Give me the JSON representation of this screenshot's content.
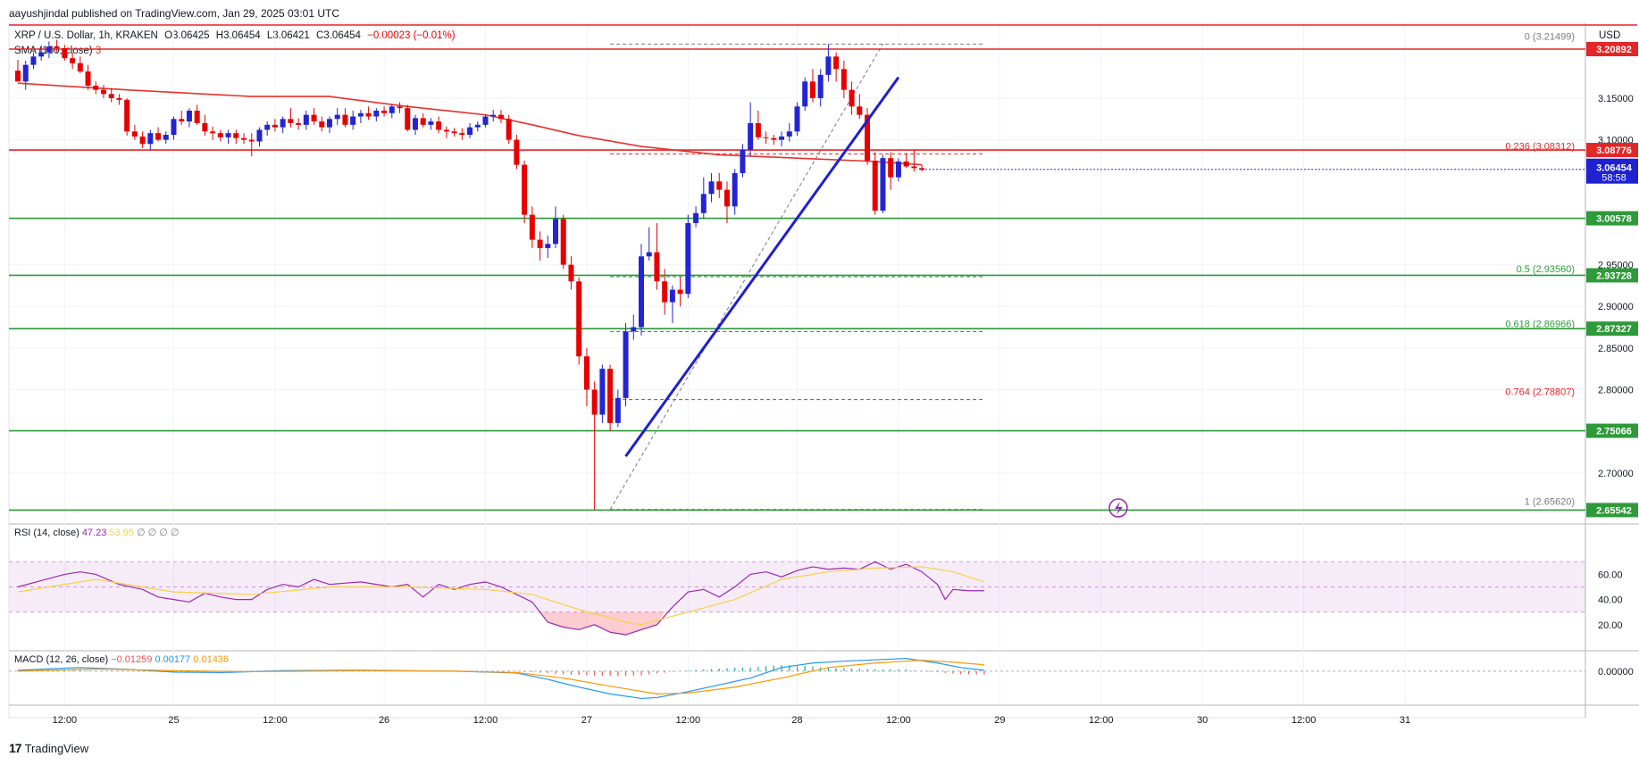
{
  "header": {
    "publisher": "aayushjindal published on TradingView.com, Jan 29, 2025 03:01 UTC",
    "symbol": "XRP / U.S. Dollar, 1h, KRAKEN",
    "ohlc": {
      "o": "O3.06425",
      "h": "H3.06454",
      "l": "L3.06421",
      "c": "C3.06454",
      "chg": "−0.00023 (−0.01%)"
    },
    "sma_label": "SMA (100, close)",
    "sma_value": "3",
    "currency": "USD"
  },
  "footer": {
    "brand": "TradingView",
    "logo": "17"
  },
  "colors": {
    "up": "#2424d4",
    "down": "#e60000",
    "sma": "#e5322d",
    "support": "#2e9a3a",
    "resistance": "#e32626",
    "trend": "#1f1fd1",
    "rsi": "#9c27b0",
    "rsi_ma": "#f7d04a",
    "macd": "#2196f3",
    "signal": "#ff9800"
  },
  "chart_data": {
    "type": "candlestick",
    "interval": "1h",
    "x_ticks": [
      "12:00",
      "25",
      "12:00",
      "26",
      "12:00",
      "27",
      "12:00",
      "28",
      "12:00",
      "29",
      "12:00",
      "30",
      "12:00",
      "31"
    ],
    "price_axis": {
      "ylim": [
        2.643,
        3.24
      ],
      "ticks": [
        "3.15000",
        "3.10000",
        "2.95000",
        "2.90000",
        "2.85000",
        "2.80000",
        "2.70000"
      ]
    },
    "levels": [
      {
        "price": 3.20892,
        "label": "3.20892",
        "kind": "resistance"
      },
      {
        "price": 3.08776,
        "label": "3.08776",
        "kind": "resistance"
      },
      {
        "price": 3.00578,
        "label": "3.00578",
        "kind": "support"
      },
      {
        "price": 2.93728,
        "label": "2.93728",
        "kind": "support"
      },
      {
        "price": 2.87327,
        "label": "2.87327",
        "kind": "support"
      },
      {
        "price": 2.75066,
        "label": "2.75066",
        "kind": "support"
      },
      {
        "price": 2.65542,
        "label": "2.65542",
        "kind": "support"
      }
    ],
    "current_price": {
      "price": 3.06454,
      "label": "3.06454",
      "countdown": "58:58"
    },
    "fibonacci": [
      {
        "ratio": "0",
        "price": 3.21499,
        "label": "0 (3.21499)"
      },
      {
        "ratio": "0.236",
        "price": 3.08312,
        "label": "0.236 (3.08312)"
      },
      {
        "ratio": "0.5",
        "price": 2.9356,
        "label": "0.5 (2.93560)"
      },
      {
        "ratio": "0.618",
        "price": 2.86966,
        "label": "0.618 (2.86966)"
      },
      {
        "ratio": "0.764",
        "price": 2.78807,
        "label": "0.764 (2.78807)"
      },
      {
        "ratio": "1",
        "price": 2.6562,
        "label": "1 (2.65620)"
      }
    ],
    "candles": [
      [
        3.183,
        3.196,
        3.17,
        3.17
      ],
      [
        3.17,
        3.195,
        3.16,
        3.19
      ],
      [
        3.19,
        3.205,
        3.185,
        3.2
      ],
      [
        3.2,
        3.212,
        3.195,
        3.205
      ],
      [
        3.205,
        3.218,
        3.198,
        3.212
      ],
      [
        3.212,
        3.22,
        3.205,
        3.21
      ],
      [
        3.21,
        3.214,
        3.195,
        3.198
      ],
      [
        3.198,
        3.205,
        3.185,
        3.192
      ],
      [
        3.192,
        3.2,
        3.18,
        3.182
      ],
      [
        3.182,
        3.19,
        3.16,
        3.165
      ],
      [
        3.165,
        3.17,
        3.155,
        3.16
      ],
      [
        3.16,
        3.166,
        3.15,
        3.155
      ],
      [
        3.155,
        3.162,
        3.145,
        3.15
      ],
      [
        3.15,
        3.155,
        3.142,
        3.148
      ],
      [
        3.148,
        3.15,
        3.105,
        3.11
      ],
      [
        3.11,
        3.118,
        3.1,
        3.104
      ],
      [
        3.104,
        3.11,
        3.09,
        3.095
      ],
      [
        3.095,
        3.112,
        3.088,
        3.108
      ],
      [
        3.108,
        3.115,
        3.098,
        3.1
      ],
      [
        3.1,
        3.11,
        3.095,
        3.106
      ],
      [
        3.106,
        3.128,
        3.1,
        3.125
      ],
      [
        3.125,
        3.135,
        3.118,
        3.122
      ],
      [
        3.122,
        3.138,
        3.115,
        3.135
      ],
      [
        3.135,
        3.142,
        3.118,
        3.12
      ],
      [
        3.12,
        3.13,
        3.105,
        3.11
      ],
      [
        3.11,
        3.116,
        3.1,
        3.108
      ],
      [
        3.108,
        3.112,
        3.098,
        3.103
      ],
      [
        3.103,
        3.112,
        3.095,
        3.108
      ],
      [
        3.108,
        3.112,
        3.095,
        3.102
      ],
      [
        3.102,
        3.108,
        3.095,
        3.1
      ],
      [
        3.1,
        3.108,
        3.08,
        3.098
      ],
      [
        3.098,
        3.115,
        3.092,
        3.112
      ],
      [
        3.112,
        3.122,
        3.105,
        3.118
      ],
      [
        3.118,
        3.125,
        3.11,
        3.115
      ],
      [
        3.115,
        3.128,
        3.108,
        3.125
      ],
      [
        3.125,
        3.138,
        3.115,
        3.12
      ],
      [
        3.12,
        3.126,
        3.112,
        3.118
      ],
      [
        3.118,
        3.135,
        3.112,
        3.13
      ],
      [
        3.13,
        3.138,
        3.118,
        3.122
      ],
      [
        3.122,
        3.128,
        3.11,
        3.115
      ],
      [
        3.115,
        3.128,
        3.108,
        3.125
      ],
      [
        3.125,
        3.138,
        3.118,
        3.13
      ],
      [
        3.13,
        3.138,
        3.115,
        3.118
      ],
      [
        3.118,
        3.135,
        3.112,
        3.128
      ],
      [
        3.128,
        3.136,
        3.12,
        3.132
      ],
      [
        3.132,
        3.14,
        3.124,
        3.128
      ],
      [
        3.128,
        3.138,
        3.122,
        3.135
      ],
      [
        3.135,
        3.14,
        3.128,
        3.132
      ],
      [
        3.132,
        3.142,
        3.126,
        3.14
      ],
      [
        3.14,
        3.145,
        3.132,
        3.138
      ],
      [
        3.138,
        3.142,
        3.11,
        3.112
      ],
      [
        3.112,
        3.13,
        3.106,
        3.126
      ],
      [
        3.126,
        3.132,
        3.115,
        3.118
      ],
      [
        3.118,
        3.126,
        3.112,
        3.122
      ],
      [
        3.122,
        3.128,
        3.108,
        3.112
      ],
      [
        3.112,
        3.116,
        3.102,
        3.11
      ],
      [
        3.11,
        3.114,
        3.104,
        3.108
      ],
      [
        3.108,
        3.114,
        3.1,
        3.106
      ],
      [
        3.106,
        3.12,
        3.102,
        3.115
      ],
      [
        3.115,
        3.122,
        3.11,
        3.118
      ],
      [
        3.118,
        3.13,
        3.115,
        3.128
      ],
      [
        3.128,
        3.136,
        3.122,
        3.13
      ],
      [
        3.13,
        3.136,
        3.12,
        3.125
      ],
      [
        3.125,
        3.13,
        3.095,
        3.1
      ],
      [
        3.1,
        3.106,
        3.065,
        3.07
      ],
      [
        3.07,
        3.075,
        3.0,
        3.01
      ],
      [
        3.01,
        3.02,
        2.97,
        2.98
      ],
      [
        2.98,
        2.99,
        2.955,
        2.97
      ],
      [
        2.97,
        2.985,
        2.958,
        2.975
      ],
      [
        2.975,
        3.02,
        2.97,
        3.005
      ],
      [
        3.005,
        3.01,
        2.945,
        2.95
      ],
      [
        2.95,
        2.96,
        2.92,
        2.93
      ],
      [
        2.93,
        2.935,
        2.83,
        2.84
      ],
      [
        2.84,
        2.85,
        2.78,
        2.8
      ],
      [
        2.8,
        2.81,
        2.656,
        2.77
      ],
      [
        2.77,
        2.83,
        2.76,
        2.825
      ],
      [
        2.825,
        2.83,
        2.75,
        2.76
      ],
      [
        2.76,
        2.8,
        2.755,
        2.79
      ],
      [
        2.79,
        2.88,
        2.78,
        2.87
      ],
      [
        2.87,
        2.89,
        2.86,
        2.875
      ],
      [
        2.875,
        2.975,
        2.865,
        2.96
      ],
      [
        2.96,
        2.995,
        2.955,
        2.965
      ],
      [
        2.965,
        3.0,
        2.92,
        2.93
      ],
      [
        2.93,
        2.945,
        2.89,
        2.905
      ],
      [
        2.905,
        2.925,
        2.88,
        2.92
      ],
      [
        2.92,
        2.935,
        2.9,
        2.915
      ],
      [
        2.915,
        3.01,
        2.91,
        3.0
      ],
      [
        3.0,
        3.02,
        2.995,
        3.012
      ],
      [
        3.012,
        3.055,
        3.005,
        3.035
      ],
      [
        3.035,
        3.06,
        3.025,
        3.05
      ],
      [
        3.05,
        3.06,
        3.03,
        3.04
      ],
      [
        3.04,
        3.05,
        3.0,
        3.02
      ],
      [
        3.02,
        3.065,
        3.01,
        3.06
      ],
      [
        3.06,
        3.095,
        3.055,
        3.088
      ],
      [
        3.088,
        3.145,
        3.08,
        3.12
      ],
      [
        3.12,
        3.135,
        3.1,
        3.103
      ],
      [
        3.103,
        3.11,
        3.095,
        3.102
      ],
      [
        3.102,
        3.106,
        3.094,
        3.1
      ],
      [
        3.1,
        3.11,
        3.092,
        3.104
      ],
      [
        3.104,
        3.12,
        3.098,
        3.11
      ],
      [
        3.11,
        3.145,
        3.105,
        3.14
      ],
      [
        3.14,
        3.175,
        3.135,
        3.17
      ],
      [
        3.17,
        3.185,
        3.145,
        3.15
      ],
      [
        3.15,
        3.185,
        3.14,
        3.178
      ],
      [
        3.178,
        3.215,
        3.17,
        3.2
      ],
      [
        3.2,
        3.205,
        3.17,
        3.185
      ],
      [
        3.185,
        3.195,
        3.15,
        3.16
      ],
      [
        3.16,
        3.17,
        3.13,
        3.14
      ],
      [
        3.14,
        3.155,
        3.125,
        3.13
      ],
      [
        3.13,
        3.138,
        3.07,
        3.075
      ],
      [
        3.075,
        3.085,
        3.01,
        3.015
      ],
      [
        3.015,
        3.082,
        3.012,
        3.078
      ],
      [
        3.078,
        3.085,
        3.04,
        3.055
      ],
      [
        3.055,
        3.078,
        3.05,
        3.074
      ],
      [
        3.074,
        3.084,
        3.066,
        3.068
      ],
      [
        3.068,
        3.088,
        3.062,
        3.066
      ],
      [
        3.066,
        3.07,
        3.062,
        3.064
      ]
    ],
    "sma100": [
      [
        0,
        3.168
      ],
      [
        14,
        3.16
      ],
      [
        30,
        3.152
      ],
      [
        40,
        3.152
      ],
      [
        50,
        3.14
      ],
      [
        60,
        3.13
      ],
      [
        66,
        3.118
      ],
      [
        72,
        3.105
      ],
      [
        80,
        3.092
      ],
      [
        90,
        3.082
      ],
      [
        100,
        3.078
      ],
      [
        110,
        3.074
      ],
      [
        116,
        3.07
      ]
    ],
    "trendline": {
      "from": [
        78,
        2.72
      ],
      "to": [
        113,
        3.175
      ]
    },
    "rsi": {
      "label": "RSI (14, close)",
      "value": "47.23",
      "ma_value": "53.95",
      "extras": "∅ ∅ ∅ ∅",
      "ylim": [
        0,
        100
      ],
      "ticks": [
        "60.00",
        "40.00",
        "20.00"
      ],
      "bands": [
        70,
        30
      ],
      "values": [
        [
          0,
          50
        ],
        [
          3,
          55
        ],
        [
          6,
          60
        ],
        [
          8,
          62
        ],
        [
          10,
          60
        ],
        [
          13,
          52
        ],
        [
          16,
          48
        ],
        [
          18,
          42
        ],
        [
          20,
          40
        ],
        [
          22,
          38
        ],
        [
          24,
          45
        ],
        [
          26,
          42
        ],
        [
          28,
          40
        ],
        [
          30,
          40
        ],
        [
          32,
          48
        ],
        [
          34,
          52
        ],
        [
          36,
          50
        ],
        [
          38,
          56
        ],
        [
          40,
          52
        ],
        [
          44,
          54
        ],
        [
          48,
          50
        ],
        [
          50,
          52
        ],
        [
          52,
          42
        ],
        [
          54,
          52
        ],
        [
          56,
          48
        ],
        [
          58,
          52
        ],
        [
          60,
          54
        ],
        [
          62,
          50
        ],
        [
          64,
          44
        ],
        [
          66,
          38
        ],
        [
          68,
          22
        ],
        [
          70,
          18
        ],
        [
          72,
          16
        ],
        [
          74,
          20
        ],
        [
          76,
          14
        ],
        [
          78,
          12
        ],
        [
          80,
          16
        ],
        [
          82,
          20
        ],
        [
          84,
          34
        ],
        [
          86,
          46
        ],
        [
          88,
          48
        ],
        [
          90,
          42
        ],
        [
          92,
          50
        ],
        [
          94,
          60
        ],
        [
          96,
          62
        ],
        [
          98,
          58
        ],
        [
          100,
          63
        ],
        [
          102,
          66
        ],
        [
          104,
          64
        ],
        [
          106,
          65
        ],
        [
          108,
          64
        ],
        [
          110,
          70
        ],
        [
          112,
          64
        ],
        [
          114,
          68
        ],
        [
          116,
          62
        ],
        [
          118,
          52
        ],
        [
          119,
          40
        ],
        [
          120,
          48
        ],
        [
          122,
          47
        ],
        [
          124,
          47
        ]
      ],
      "ma": [
        [
          0,
          46
        ],
        [
          10,
          56
        ],
        [
          20,
          46
        ],
        [
          30,
          44
        ],
        [
          40,
          50
        ],
        [
          50,
          50
        ],
        [
          60,
          48
        ],
        [
          66,
          44
        ],
        [
          72,
          32
        ],
        [
          78,
          22
        ],
        [
          80,
          20
        ],
        [
          86,
          30
        ],
        [
          92,
          40
        ],
        [
          98,
          56
        ],
        [
          104,
          62
        ],
        [
          110,
          65
        ],
        [
          116,
          66
        ],
        [
          120,
          62
        ],
        [
          124,
          54
        ]
      ]
    },
    "macd": {
      "label": "MACD (12, 26, close)",
      "hist_value": "−0.01259",
      "macd_value": "0.00177",
      "signal_value": "0.01436",
      "ylim": [
        -0.065,
        0.045
      ],
      "ticks": [
        "0.00000"
      ],
      "macd": [
        [
          0,
          0.002
        ],
        [
          8,
          0.008
        ],
        [
          14,
          0.004
        ],
        [
          20,
          -0.002
        ],
        [
          26,
          -0.003
        ],
        [
          34,
          0.001
        ],
        [
          44,
          0.002
        ],
        [
          56,
          0.0
        ],
        [
          64,
          -0.004
        ],
        [
          68,
          -0.018
        ],
        [
          72,
          -0.035
        ],
        [
          76,
          -0.05
        ],
        [
          80,
          -0.06
        ],
        [
          82,
          -0.058
        ],
        [
          86,
          -0.045
        ],
        [
          90,
          -0.03
        ],
        [
          94,
          -0.015
        ],
        [
          98,
          0.008
        ],
        [
          102,
          0.018
        ],
        [
          106,
          0.022
        ],
        [
          110,
          0.025
        ],
        [
          114,
          0.028
        ],
        [
          118,
          0.018
        ],
        [
          121,
          0.008
        ],
        [
          124,
          0.002
        ]
      ],
      "signal": [
        [
          0,
          0.0
        ],
        [
          10,
          0.005
        ],
        [
          20,
          0.001
        ],
        [
          30,
          -0.001
        ],
        [
          44,
          0.001
        ],
        [
          56,
          0.0
        ],
        [
          64,
          -0.003
        ],
        [
          70,
          -0.015
        ],
        [
          76,
          -0.033
        ],
        [
          82,
          -0.05
        ],
        [
          86,
          -0.048
        ],
        [
          92,
          -0.035
        ],
        [
          98,
          -0.015
        ],
        [
          104,
          0.008
        ],
        [
          110,
          0.018
        ],
        [
          116,
          0.024
        ],
        [
          120,
          0.02
        ],
        [
          124,
          0.014
        ]
      ]
    }
  }
}
